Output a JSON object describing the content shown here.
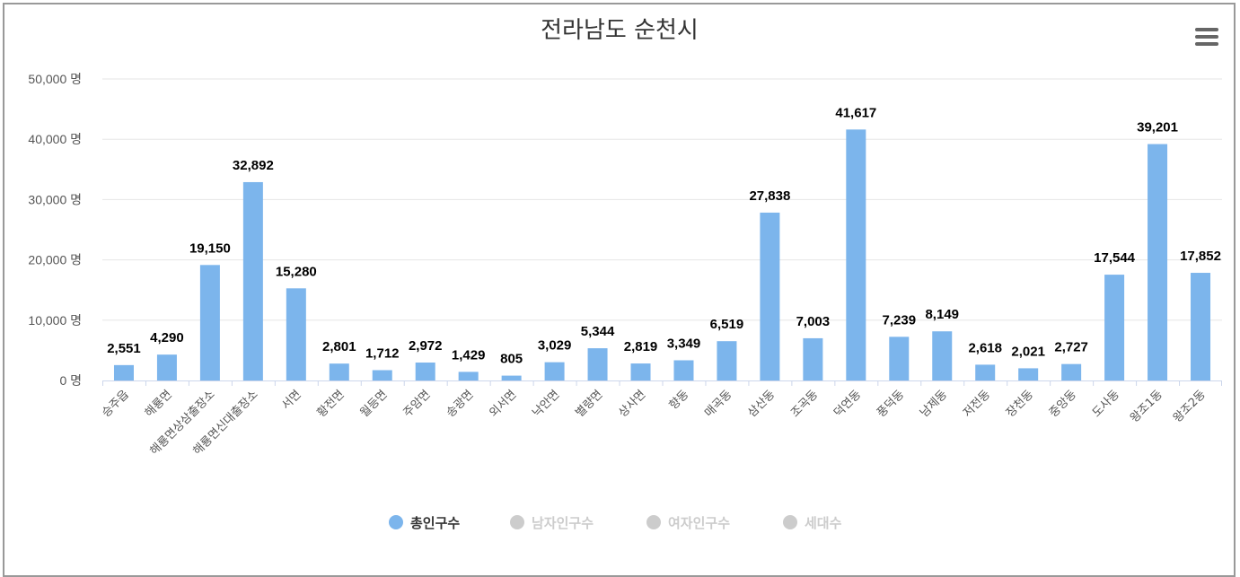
{
  "chart_data": {
    "type": "bar",
    "title": "전라남도 순천시",
    "categories": [
      "승주읍",
      "해룡면",
      "해룡면상삼출장소",
      "해룡면신대출장소",
      "서면",
      "황전면",
      "월등면",
      "주암면",
      "송광면",
      "외서면",
      "낙안면",
      "별량면",
      "상사면",
      "향동",
      "매곡동",
      "삼산동",
      "조곡동",
      "덕연동",
      "풍덕동",
      "남제동",
      "저전동",
      "장천동",
      "중앙동",
      "도사동",
      "왕조1동",
      "왕조2동"
    ],
    "series": [
      {
        "name": "총인구수",
        "values": [
          2551,
          4290,
          19150,
          32892,
          15280,
          2801,
          1712,
          2972,
          1429,
          805,
          3029,
          5344,
          2819,
          3349,
          6519,
          27838,
          7003,
          41617,
          7239,
          8149,
          2618,
          2021,
          2727,
          17544,
          39201,
          17852
        ],
        "color": "#7cb5ec",
        "visible": true
      }
    ],
    "data_labels": [
      "2,551",
      "4,290",
      "19,150",
      "32,892",
      "15,280",
      "2,801",
      "1,712",
      "2,972",
      "1,429",
      "805",
      "3,029",
      "5,344",
      "2,819",
      "3,349",
      "6,519",
      "27,838",
      "7,003",
      "41,617",
      "7,239",
      "8,149",
      "2,618",
      "2,021",
      "2,727",
      "17,544",
      "39,201",
      "17,852"
    ],
    "ylim": [
      0,
      50000
    ],
    "yticks": [
      0,
      10000,
      20000,
      30000,
      40000,
      50000
    ],
    "ytick_labels": [
      "0 명",
      "10,000 명",
      "20,000 명",
      "30,000 명",
      "40,000 명",
      "50,000 명"
    ],
    "xlabel": "",
    "ylabel": "",
    "grid": true,
    "legend_position": "bottom-center",
    "legend": [
      {
        "label": "총인구수",
        "active": true,
        "color": "#7cb5ec"
      },
      {
        "label": "남자인구수",
        "active": false,
        "color": "#cccccc"
      },
      {
        "label": "여자인구수",
        "active": false,
        "color": "#cccccc"
      },
      {
        "label": "세대수",
        "active": false,
        "color": "#cccccc"
      }
    ]
  },
  "menu": {
    "icon": "hamburger-menu-icon"
  },
  "colors": {
    "bar": "#7cb5ec",
    "grid": "#e6e6e6",
    "axis": "#ccd6eb",
    "inactive_legend": "#cccccc",
    "active_legend_text": "#333333"
  }
}
